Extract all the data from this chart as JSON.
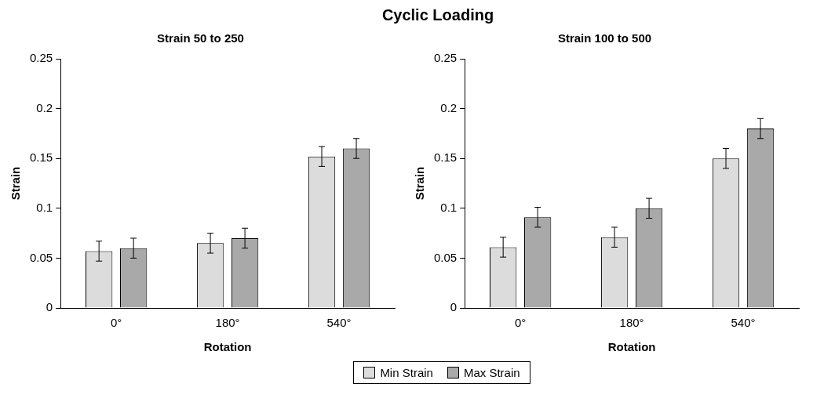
{
  "chart_data": [
    {
      "type": "bar",
      "title": "Cyclic Loading",
      "subtitle": "Strain 50 to 250",
      "xlabel": "Rotation",
      "ylabel": "Strain",
      "categories": [
        "0°",
        "180°",
        "540°"
      ],
      "series": [
        {
          "color": "#dcdcdc",
          "values": [
            0.057,
            0.065,
            0.152
          ],
          "errors": [
            0.01,
            0.01,
            0.01
          ]
        },
        {
          "color": "#a9a9a9",
          "values": [
            0.06,
            0.07,
            0.16
          ],
          "errors": [
            0.01,
            0.01,
            0.01
          ]
        }
      ],
      "ylim": [
        0,
        0.25
      ],
      "yticks": [
        0,
        0.05,
        0.1,
        0.15,
        0.2,
        0.25
      ],
      "grid": false
    },
    {
      "type": "bar",
      "subtitle": "Strain 100 to 500",
      "xlabel": "Rotation",
      "ylabel": "Strain",
      "categories": [
        "0°",
        "180°",
        "540°"
      ],
      "series": [
        {
          "name": "Min Strain",
          "color": "#dcdcdc",
          "values": [
            0.061,
            0.071,
            0.15
          ],
          "errors": [
            0.01,
            0.01,
            0.01
          ]
        },
        {
          "name": "Max Strain",
          "color": "#a9a9a9",
          "values": [
            0.091,
            0.1,
            0.18
          ],
          "errors": [
            0.01,
            0.01,
            0.01
          ]
        }
      ],
      "ylim": [
        0,
        0.25
      ],
      "yticks": [
        0,
        0.05,
        0.1,
        0.15,
        0.2,
        0.25
      ],
      "grid": false,
      "legend": "bottom"
    }
  ]
}
